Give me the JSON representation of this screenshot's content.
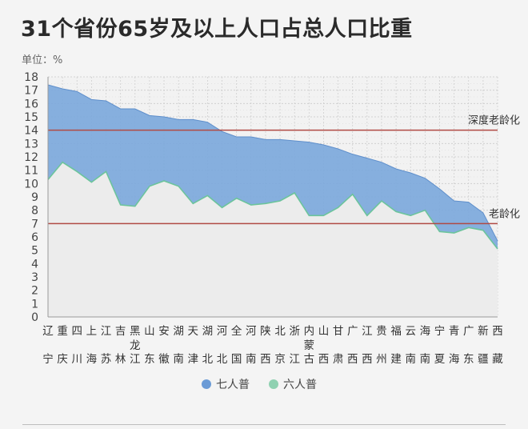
{
  "title": "31个省份65岁及以上人口占总人口比重",
  "unit_label": "单位：%",
  "chart_data": {
    "type": "area",
    "title": "31个省份65岁及以上人口占总人口比重",
    "ylabel": "单位：%",
    "ylim": [
      0,
      18
    ],
    "yticks": [
      0,
      1,
      2,
      3,
      4,
      5,
      6,
      7,
      8,
      9,
      10,
      11,
      12,
      13,
      14,
      15,
      16,
      17,
      18
    ],
    "grid": true,
    "legend_position": "bottom",
    "categories": [
      "辽宁",
      "重庆",
      "四川",
      "上海",
      "江苏",
      "吉林",
      "黑龙江",
      "山东",
      "安徽",
      "湖南",
      "天津",
      "湖北",
      "河北",
      "全国",
      "河南",
      "陕西",
      "北京",
      "浙江",
      "内蒙古",
      "山西",
      "甘肃",
      "广西",
      "江西",
      "贵州",
      "福建",
      "云南",
      "海南",
      "宁夏",
      "青海",
      "广东",
      "新疆",
      "西藏"
    ],
    "series": [
      {
        "name": "七人普",
        "color": "#7aa7dc",
        "values": [
          17.4,
          17.1,
          16.9,
          16.3,
          16.2,
          15.6,
          15.6,
          15.1,
          15.0,
          14.8,
          14.8,
          14.6,
          13.9,
          13.5,
          13.5,
          13.3,
          13.3,
          13.2,
          13.1,
          12.9,
          12.6,
          12.2,
          11.9,
          11.6,
          11.1,
          10.8,
          10.4,
          9.6,
          8.7,
          8.6,
          7.8,
          5.7
        ]
      },
      {
        "name": "六人普",
        "color": "#8fd1b1",
        "values": [
          10.3,
          11.6,
          10.9,
          10.1,
          10.9,
          8.4,
          8.3,
          9.8,
          10.2,
          9.8,
          8.5,
          9.1,
          8.2,
          8.9,
          8.4,
          8.5,
          8.7,
          9.3,
          7.6,
          7.6,
          8.2,
          9.2,
          7.6,
          8.7,
          7.9,
          7.6,
          8.0,
          6.4,
          6.3,
          6.7,
          6.5,
          5.1
        ]
      }
    ],
    "reference_lines": [
      {
        "label": "深度老龄化",
        "value": 14,
        "color": "#b04a44"
      },
      {
        "label": "老龄化",
        "value": 7,
        "color": "#b04a44"
      }
    ]
  }
}
